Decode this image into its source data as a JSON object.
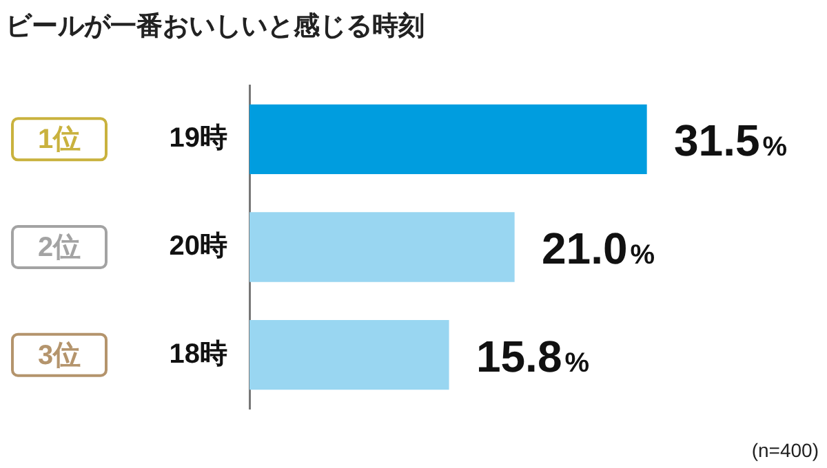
{
  "chart_data": {
    "type": "bar",
    "orientation": "horizontal",
    "title": "ビールが一番おいしいと感じる時刻",
    "categories": [
      "19時",
      "20時",
      "18時"
    ],
    "values": [
      31.5,
      21.0,
      15.8
    ],
    "colors": [
      "#009ddf",
      "#99d6f1",
      "#99d6f1"
    ],
    "value_labels": [
      "31.5%",
      "21.0%",
      "15.8%"
    ],
    "tick_labels": "y",
    "legend": false,
    "annotations": [
      "1位",
      "2位",
      "3位",
      "(n=400)"
    ]
  }
}
